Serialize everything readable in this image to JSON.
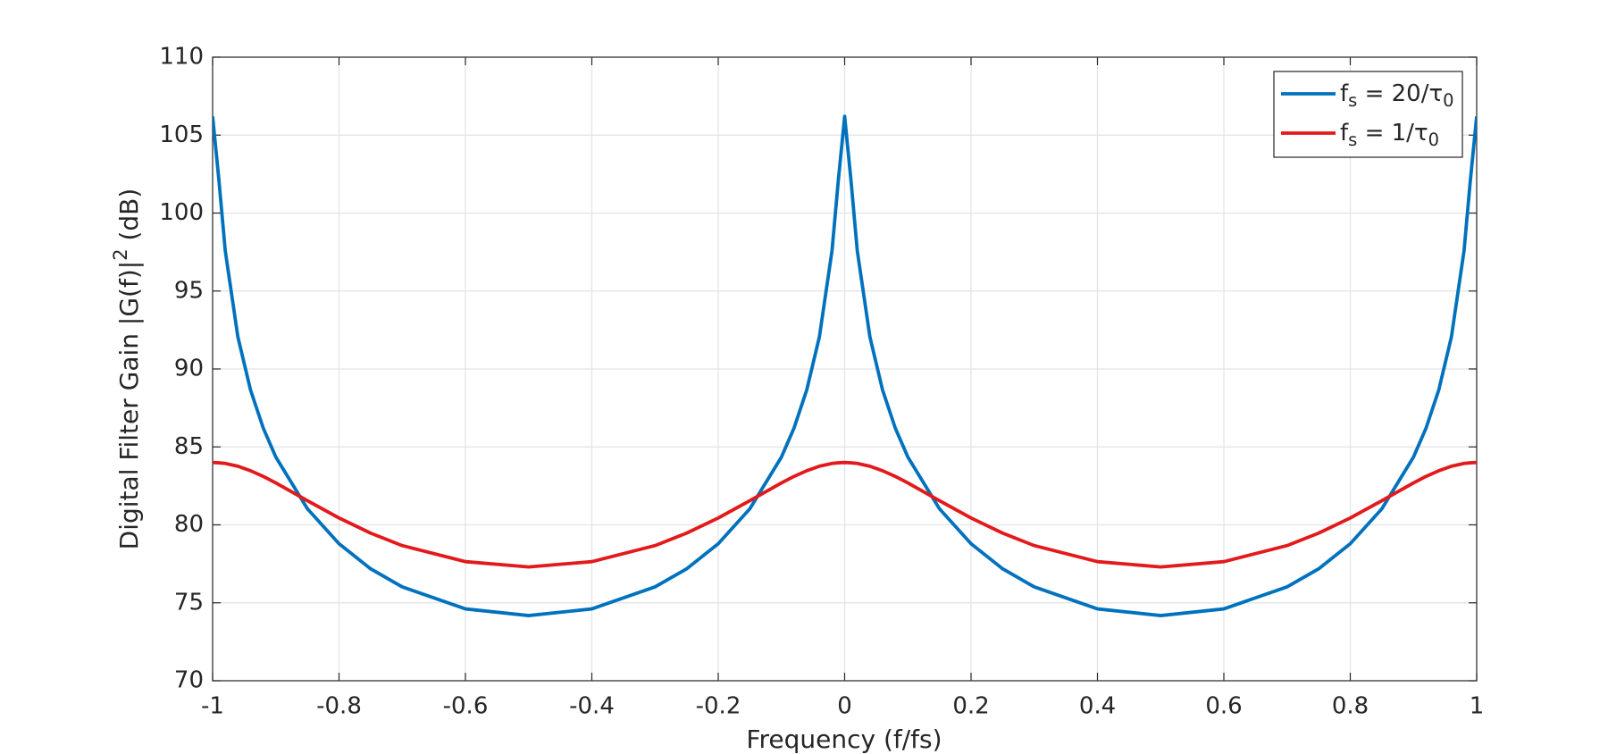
{
  "chart_data": {
    "type": "line",
    "xlabel": "Frequency (f/fs)",
    "ylabel": "Digital Filter Gain |G(f)|2 (dB)",
    "x": [
      -1,
      -0.99,
      -0.98,
      -0.96,
      -0.94,
      -0.92,
      -0.9,
      -0.85,
      -0.8,
      -0.75,
      -0.7,
      -0.6,
      -0.5,
      -0.4,
      -0.3,
      -0.25,
      -0.2,
      -0.15,
      -0.1,
      -0.08,
      -0.06,
      -0.04,
      -0.02,
      -0.01,
      0,
      0.01,
      0.02,
      0.04,
      0.06,
      0.08,
      0.1,
      0.15,
      0.2,
      0.25,
      0.3,
      0.4,
      0.5,
      0.6,
      0.7,
      0.75,
      0.8,
      0.85,
      0.9,
      0.92,
      0.94,
      0.96,
      0.98,
      0.99,
      1
    ],
    "series": [
      {
        "name": "fs = 20/τ0",
        "color": "#0072bd",
        "values": [
          106.2,
          102.1,
          97.58,
          92.05,
          88.65,
          86.22,
          84.35,
          81.03,
          78.79,
          77.18,
          76.02,
          74.61,
          74.18,
          74.61,
          76.02,
          77.18,
          78.79,
          81.03,
          84.35,
          86.22,
          88.65,
          92.05,
          97.58,
          102.1,
          106.2,
          102.1,
          97.58,
          92.05,
          88.65,
          86.22,
          84.35,
          81.03,
          78.79,
          77.18,
          76.02,
          74.61,
          74.18,
          74.61,
          76.02,
          77.18,
          78.79,
          81.03,
          84.35,
          86.22,
          88.65,
          92.05,
          97.58,
          102.1,
          106.2
        ]
      },
      {
        "name": "fs = 1/τ0",
        "color": "#e31a1c",
        "values": [
          84,
          83.98,
          83.94,
          83.76,
          83.47,
          83.11,
          82.69,
          81.55,
          80.44,
          79.47,
          78.67,
          77.64,
          77.3,
          77.64,
          78.67,
          79.47,
          80.44,
          81.55,
          82.69,
          83.11,
          83.47,
          83.76,
          83.94,
          83.98,
          84,
          83.98,
          83.94,
          83.76,
          83.47,
          83.11,
          82.69,
          81.55,
          80.44,
          79.47,
          78.67,
          77.64,
          77.3,
          77.64,
          78.67,
          79.47,
          80.44,
          81.55,
          82.69,
          83.11,
          83.47,
          83.76,
          83.94,
          83.98,
          84
        ]
      }
    ],
    "xlim": [
      -1,
      1
    ],
    "xticks": [
      -1,
      -0.8,
      -0.6,
      -0.4,
      -0.2,
      0,
      0.2,
      0.4,
      0.6,
      0.8,
      1
    ],
    "ylim": [
      70,
      110
    ],
    "yticks": [
      70,
      75,
      80,
      85,
      90,
      95,
      100,
      105,
      110
    ],
    "grid": true,
    "legend": "upper right"
  }
}
